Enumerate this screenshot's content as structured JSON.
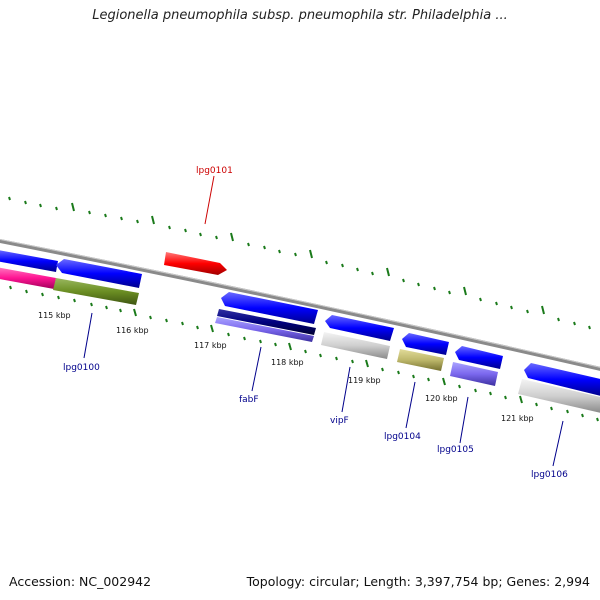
{
  "title": "Legionella pneumophila subsp. pneumophila str. Philadelphia ...",
  "footer": {
    "accession": "Accession: NC_002942",
    "topology": "Topology: circular; Length: 3,397,754 bp; Genes: 2,994"
  },
  "scale_labels": [
    "115 kbp",
    "116 kbp",
    "117 kbp",
    "118 kbp",
    "119 kbp",
    "120 kbp",
    "121 kbp"
  ],
  "gene_labels": {
    "lpg0101": "lpg0101",
    "lpg0100": "lpg0100",
    "fabF": "fabF",
    "vipF": "vipF",
    "lpg0104": "lpg0104",
    "lpg0105": "lpg0105",
    "lpg0106": "lpg0106"
  },
  "colors": {
    "highlight_label": "#cc0000",
    "gene_label": "#00008b",
    "cds_forward": "#0000ff",
    "cds_selected": "#ff0000",
    "tick": "#1a7a1a",
    "backbone": "#888888"
  }
}
